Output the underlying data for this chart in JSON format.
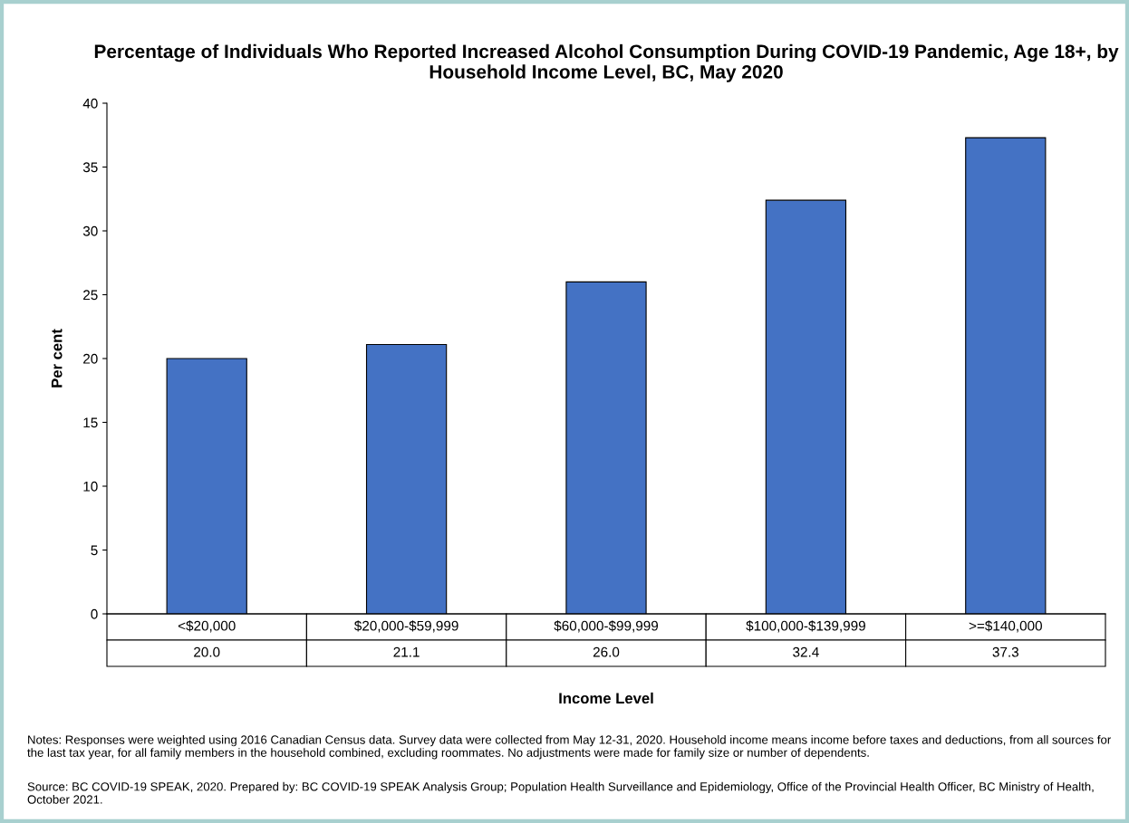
{
  "chart_data": {
    "type": "bar",
    "title": "Percentage of Individuals Who Reported Increased Alcohol Consumption During COVID-19 Pandemic, Age 18+, by Household Income Level, BC, May 2020",
    "xlabel": "Income Level",
    "ylabel": "Per cent",
    "categories": [
      "<$20,000",
      "$20,000-$59,999",
      "$60,000-$99,999",
      "$100,000-$139,999",
      ">=$140,000"
    ],
    "values": [
      20.0,
      21.1,
      26.0,
      32.4,
      37.3
    ],
    "value_labels": [
      "20.0",
      "21.1",
      "26.0",
      "32.4",
      "37.3"
    ],
    "color": "#4472c4",
    "ylim": [
      0,
      40
    ],
    "yticks": [
      0,
      5,
      10,
      15,
      20,
      25,
      30,
      35,
      40
    ],
    "annotations": [
      "Notes: Responses were weighted using 2016 Canadian Census data. Survey data were collected from May 12-31, 2020. Household income means income before taxes and deductions, from all sources for the last tax year, for all family members in the household combined, excluding roommates. No adjustments were made for family size or number of dependents.",
      "Source: BC COVID-19 SPEAK, 2020. Prepared by: BC COVID-19 SPEAK Analysis Group; Population Health Surveillance and Epidemiology, Office of the Provincial Health Officer, BC Ministry of Health, October 2021."
    ]
  }
}
